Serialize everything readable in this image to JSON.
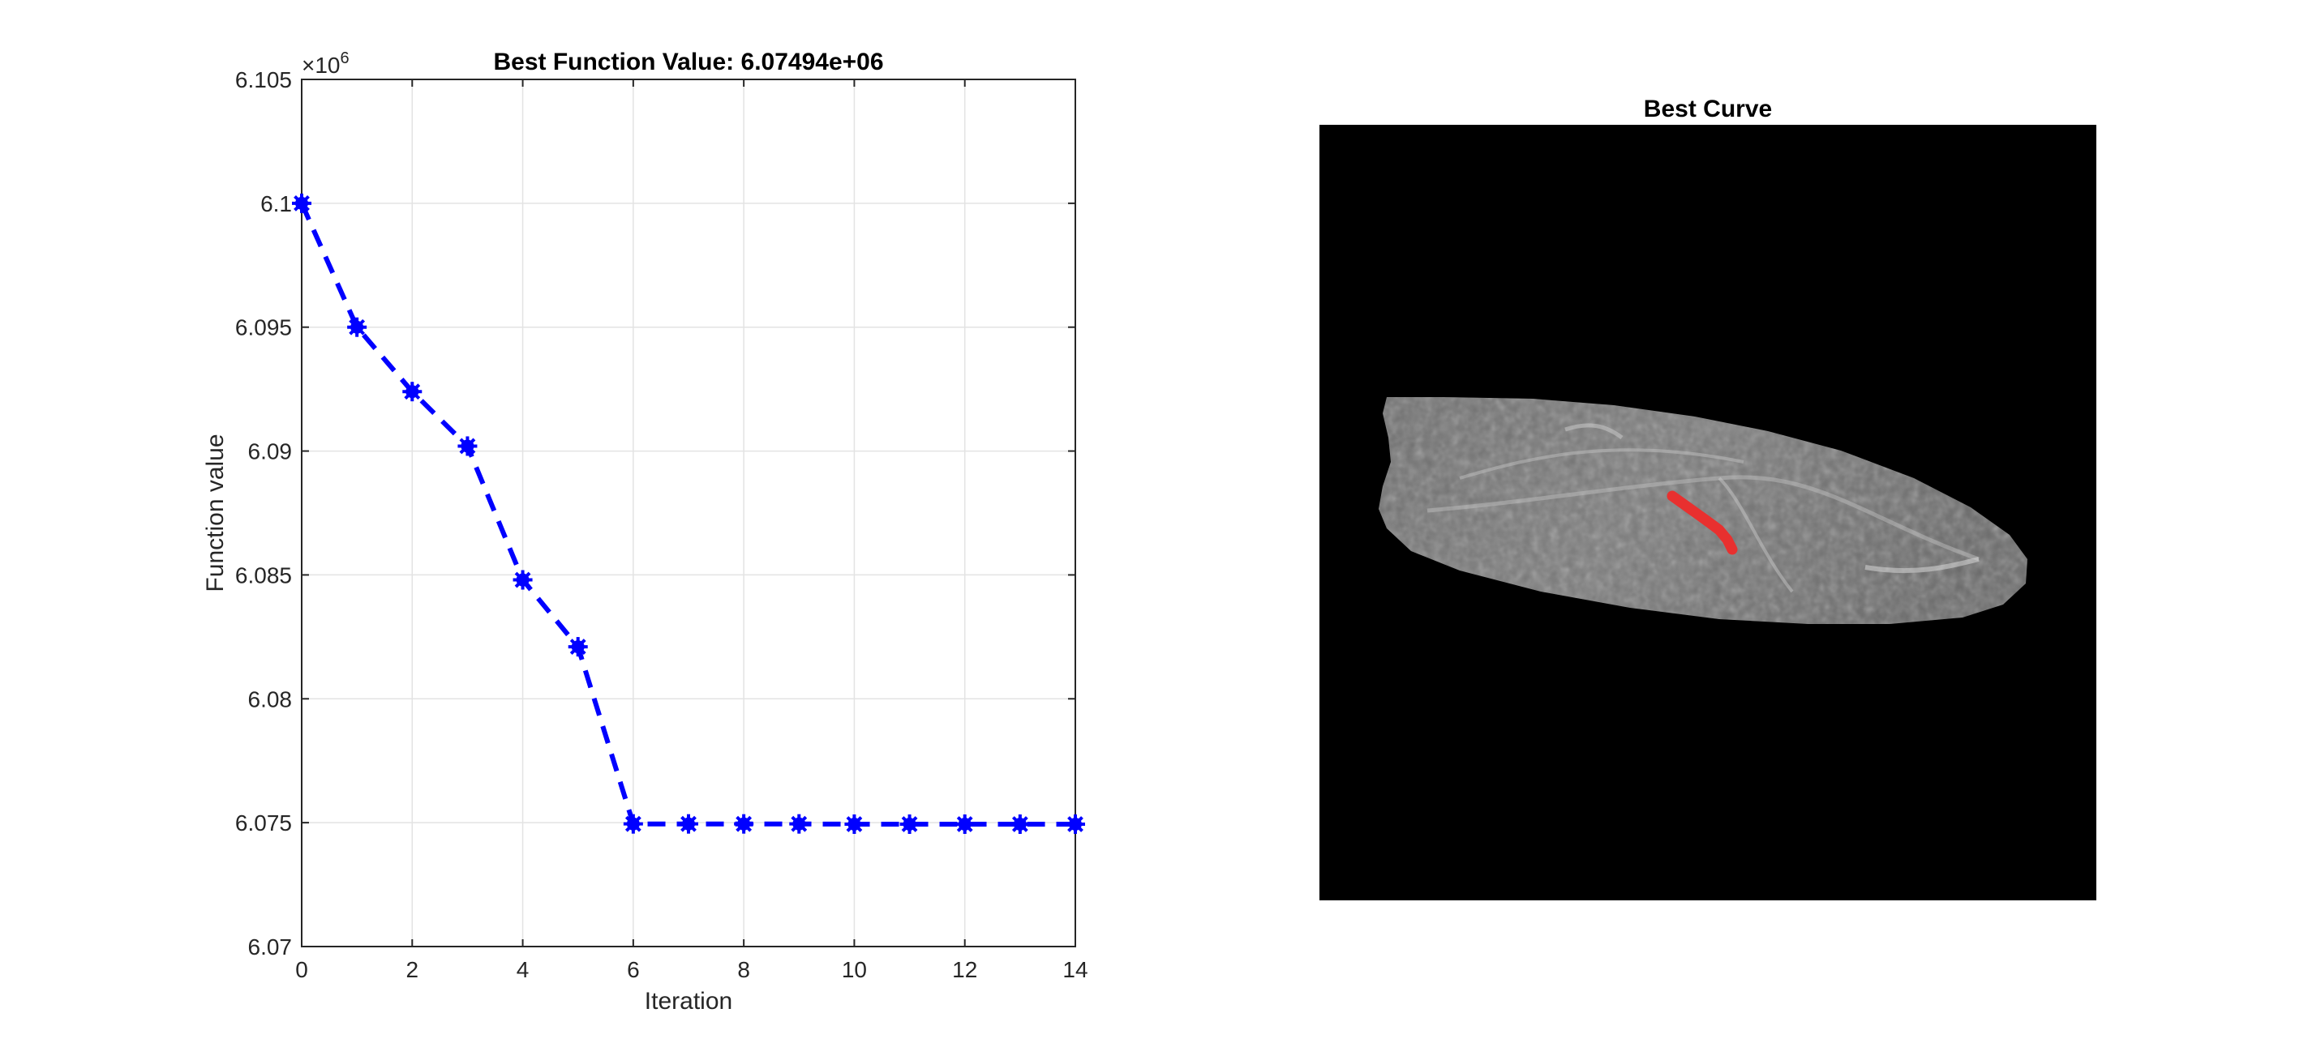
{
  "chart_data": [
    {
      "type": "line",
      "title": "Best Function Value: 6.07494e+06",
      "xlabel": "Iteration",
      "ylabel": "Function value",
      "y_exponent_label": "×10",
      "y_exponent_power": "6",
      "xlim": [
        0,
        14
      ],
      "ylim": [
        6.07,
        6.105
      ],
      "x_ticks": [
        "0",
        "2",
        "4",
        "6",
        "8",
        "10",
        "12",
        "14"
      ],
      "y_ticks": [
        "6.07",
        "6.075",
        "6.08",
        "6.085",
        "6.09",
        "6.095",
        "6.1",
        "6.105"
      ],
      "grid": true,
      "series": [
        {
          "x": [
            0,
            1,
            2,
            3,
            4,
            5,
            6,
            7,
            8,
            9,
            10,
            11,
            12,
            13,
            14
          ],
          "y": [
            6.1,
            6.095,
            6.0924,
            6.0902,
            6.0848,
            6.0821,
            6.07495,
            6.07495,
            6.07495,
            6.07495,
            6.07494,
            6.07494,
            6.07494,
            6.07494,
            6.07494
          ],
          "color": "#0000ff",
          "line_style": "dashed",
          "marker": "asterisk"
        }
      ]
    },
    {
      "type": "image",
      "title": "Best Curve",
      "background": "#000000",
      "content": "grayscale elliptical cell image with red overlay curve",
      "curve_color": "#e8302f"
    }
  ]
}
